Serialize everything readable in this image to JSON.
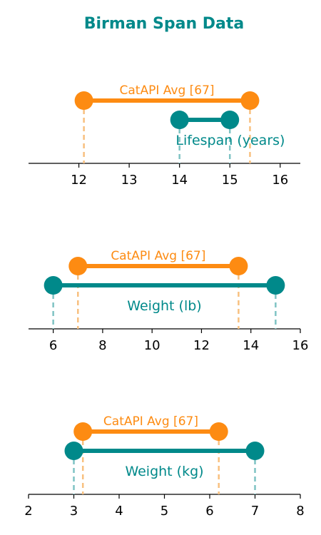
{
  "title": "Birman Span Data",
  "colors": {
    "title": "#00898a",
    "breed": "#00898a",
    "average": "#fd8b12",
    "axis": "#000000",
    "breed_guide": "#7fc3c4",
    "average_guide": "#f8c07f"
  },
  "chart_data": [
    {
      "type": "range",
      "title": "Birman Span Data",
      "xlim": [
        11,
        16.4
      ],
      "ticks": [
        12,
        13,
        14,
        15,
        16
      ],
      "series": [
        {
          "name": "Lifespan (years)",
          "role": "breed",
          "low": 14,
          "high": 15
        },
        {
          "name": "CatAPI Avg [67]",
          "role": "average",
          "low": 12.1,
          "high": 15.4
        }
      ]
    },
    {
      "type": "range",
      "xlim": [
        5,
        16
      ],
      "ticks": [
        6,
        8,
        10,
        12,
        14,
        16
      ],
      "series": [
        {
          "name": "Weight (lb)",
          "role": "breed",
          "low": 6,
          "high": 15
        },
        {
          "name": "CatAPI Avg [67]",
          "role": "average",
          "low": 7,
          "high": 13.5
        }
      ]
    },
    {
      "type": "range",
      "xlim": [
        2,
        8
      ],
      "ticks": [
        2,
        3,
        4,
        5,
        6,
        7,
        8
      ],
      "series": [
        {
          "name": "Weight (kg)",
          "role": "breed",
          "low": 3,
          "high": 7
        },
        {
          "name": "CatAPI Avg [67]",
          "role": "average",
          "low": 3.2,
          "high": 6.2
        }
      ]
    }
  ]
}
